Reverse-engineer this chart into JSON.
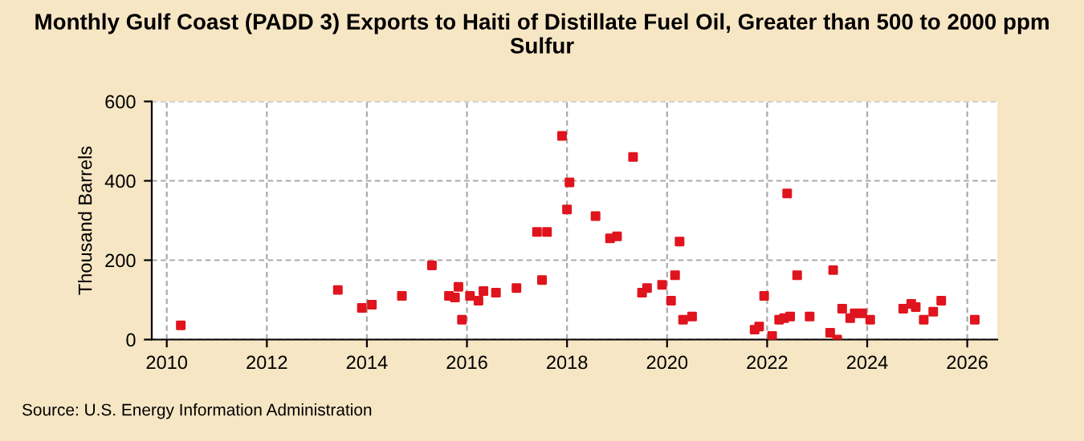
{
  "chart_data": {
    "type": "scatter",
    "title": "Monthly Gulf Coast (PADD 3) Exports to Haiti of Distillate Fuel Oil, Greater than 500 to 2000 ppm Sulfur",
    "ylabel": "Thousand Barrels",
    "annotations": [
      "Source: U.S. Energy Information Administration"
    ],
    "x": [
      2010.28,
      2013.42,
      2013.9,
      2014.1,
      2014.7,
      2015.3,
      2015.64,
      2015.76,
      2015.83,
      2015.9,
      2016.06,
      2016.23,
      2016.33,
      2016.58,
      2016.99,
      2017.5,
      2017.4,
      2017.6,
      2017.9,
      2018.05,
      2018.0,
      2018.57,
      2018.86,
      2019.0,
      2019.32,
      2019.5,
      2019.6,
      2019.9,
      2020.08,
      2020.16,
      2020.25,
      2020.32,
      2020.5,
      2021.75,
      2021.84,
      2021.94,
      2022.1,
      2022.4,
      2022.24,
      2022.34,
      2022.46,
      2022.6,
      2022.85,
      2023.26,
      2023.32,
      2023.4,
      2023.5,
      2023.66,
      2023.75,
      2023.9,
      2024.06,
      2024.72,
      2024.88,
      2024.97,
      2025.13,
      2025.32,
      2025.48,
      2026.15
    ],
    "series": [
      {
        "color": "#e0141e",
        "values": [
          36,
          125,
          80,
          88,
          110,
          187,
          110,
          106,
          133,
          50,
          110,
          98,
          122,
          118,
          130,
          150,
          271,
          271,
          513,
          396,
          328,
          311,
          255,
          260,
          460,
          118,
          130,
          138,
          98,
          162,
          247,
          50,
          58,
          25,
          33,
          110,
          9,
          368,
          50,
          54,
          58,
          162,
          58,
          17,
          175,
          0,
          78,
          54,
          66,
          66,
          50,
          78,
          90,
          82,
          50,
          70,
          98,
          50
        ]
      }
    ],
    "marker": "square",
    "grid": true,
    "legend": false,
    "xlim": [
      2009.7,
      2026.6
    ],
    "xticks": [
      2010,
      2012,
      2014,
      2016,
      2018,
      2020,
      2022,
      2024,
      2026
    ],
    "ylim": [
      0,
      600
    ],
    "yticks": [
      0,
      200,
      400,
      600
    ]
  }
}
